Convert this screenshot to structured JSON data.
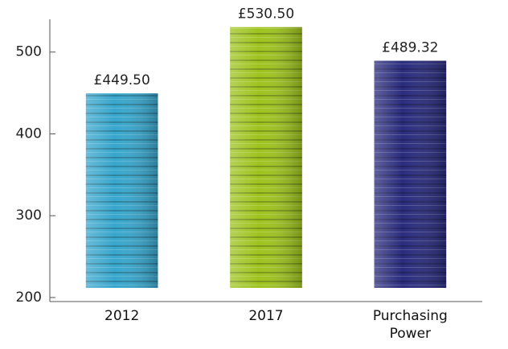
{
  "chart_data": {
    "type": "bar",
    "categories": [
      "2012",
      "2017",
      "Purchasing Power"
    ],
    "values": [
      449.5,
      530.5,
      489.32
    ],
    "value_labels": [
      "£449.50",
      "£530.50",
      "£489.32"
    ],
    "colors": [
      "#38a6cc",
      "#9ec31e",
      "#2a2c7c"
    ],
    "ylim": [
      200,
      540
    ],
    "yticks": [
      200,
      300,
      400,
      500
    ],
    "grid": false
  }
}
